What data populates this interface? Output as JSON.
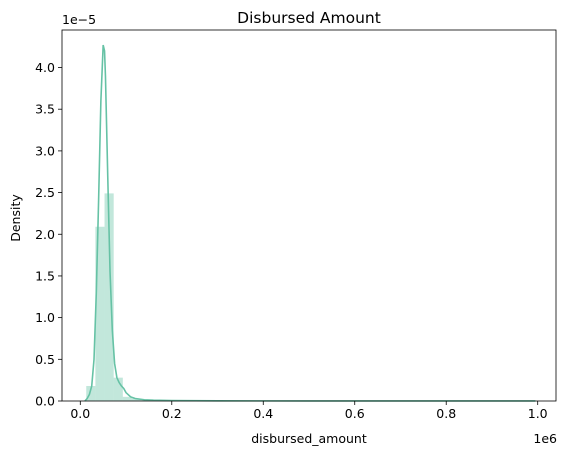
{
  "chart_data": {
    "type": "histogram",
    "title": "Disbursed Amount",
    "xlabel": "disbursed_amount",
    "ylabel": "Density",
    "x_offset_label": "1e6",
    "y_offset_label": "1e−5",
    "xlim": [
      -40000,
      1040000
    ],
    "ylim": [
      0,
      4.45
    ],
    "x_ticks": [
      0,
      200000,
      400000,
      600000,
      800000,
      1000000
    ],
    "x_tick_labels": [
      "0.0",
      "0.2",
      "0.4",
      "0.6",
      "0.8",
      "1.0"
    ],
    "y_ticks": [
      0,
      0.5,
      1.0,
      1.5,
      2.0,
      2.5,
      3.0,
      3.5,
      4.0
    ],
    "y_tick_labels": [
      "0.0",
      "0.5",
      "1.0",
      "1.5",
      "2.0",
      "2.5",
      "3.0",
      "3.5",
      "4.0"
    ],
    "bar_color": "#66c2a5",
    "bins": {
      "width": 20000,
      "starts": [
        13000,
        33000,
        53000,
        73000,
        93000,
        113000,
        133000
      ],
      "densities": [
        0.18,
        2.09,
        2.49,
        0.28,
        0.05,
        0.03,
        0.01
      ]
    },
    "kde": {
      "x": [
        10000,
        15000,
        20000,
        25000,
        30000,
        35000,
        40000,
        45000,
        50000,
        53000,
        55000,
        60000,
        65000,
        70000,
        75000,
        80000,
        85000,
        90000,
        95000,
        100000,
        110000,
        120000,
        140000,
        160000,
        200000,
        300000,
        500000,
        700000,
        900000,
        995000
      ],
      "y": [
        0.0,
        0.03,
        0.08,
        0.18,
        0.5,
        1.3,
        2.4,
        3.6,
        4.27,
        4.2,
        3.9,
        2.7,
        1.55,
        0.85,
        0.45,
        0.28,
        0.22,
        0.18,
        0.15,
        0.1,
        0.05,
        0.03,
        0.015,
        0.01,
        0.005,
        0.002,
        0.001,
        0.001,
        0.001,
        0.001
      ]
    }
  }
}
